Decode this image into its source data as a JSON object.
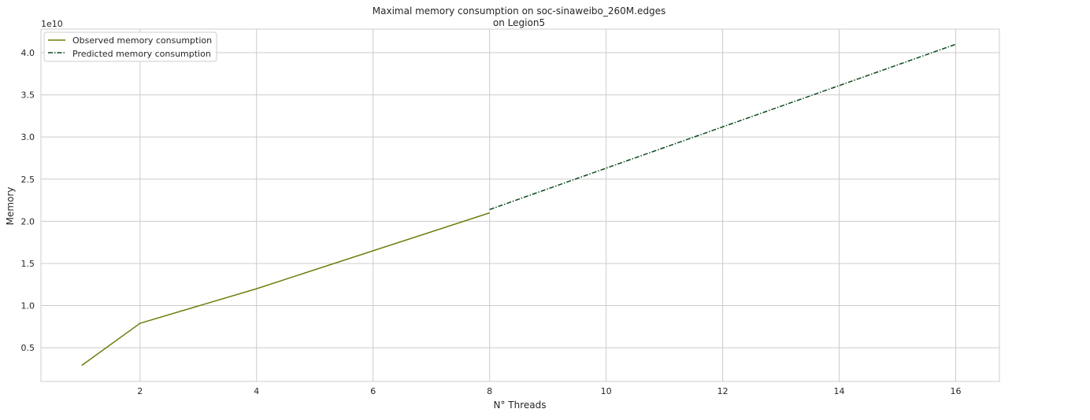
{
  "chart_data": {
    "type": "line",
    "title": "Maximal memory consumption on soc-sinaweibo_260M.edges",
    "subtitle": "on Legion5",
    "xlabel": "N° Threads",
    "ylabel": "Memory",
    "y_offset_label": "1e10",
    "xlim": [
      0.3,
      16.75
    ],
    "ylim": [
      0.1,
      4.28
    ],
    "x_ticks": [
      2,
      4,
      6,
      8,
      10,
      12,
      14,
      16
    ],
    "x_tick_labels": [
      "2",
      "4",
      "6",
      "8",
      "10",
      "12",
      "14",
      "16"
    ],
    "y_ticks": [
      0.5,
      1.0,
      1.5,
      2.0,
      2.5,
      3.0,
      3.5,
      4.0
    ],
    "y_tick_labels": [
      "0.5",
      "1.0",
      "1.5",
      "2.0",
      "2.5",
      "3.0",
      "3.5",
      "4.0"
    ],
    "grid": true,
    "legend_position": "top-left",
    "series": [
      {
        "name": "Observed memory consumption",
        "color": "#6b7f0e",
        "style": "solid",
        "x": [
          1,
          2,
          4,
          8
        ],
        "y": [
          0.29,
          0.79,
          1.2,
          2.1
        ]
      },
      {
        "name": "Predicted memory consumption",
        "color": "#0b4a1e",
        "style": "dashdot",
        "x": [
          8,
          10,
          12,
          14,
          16
        ],
        "y": [
          2.14,
          2.63,
          3.12,
          3.61,
          4.1
        ]
      }
    ]
  }
}
